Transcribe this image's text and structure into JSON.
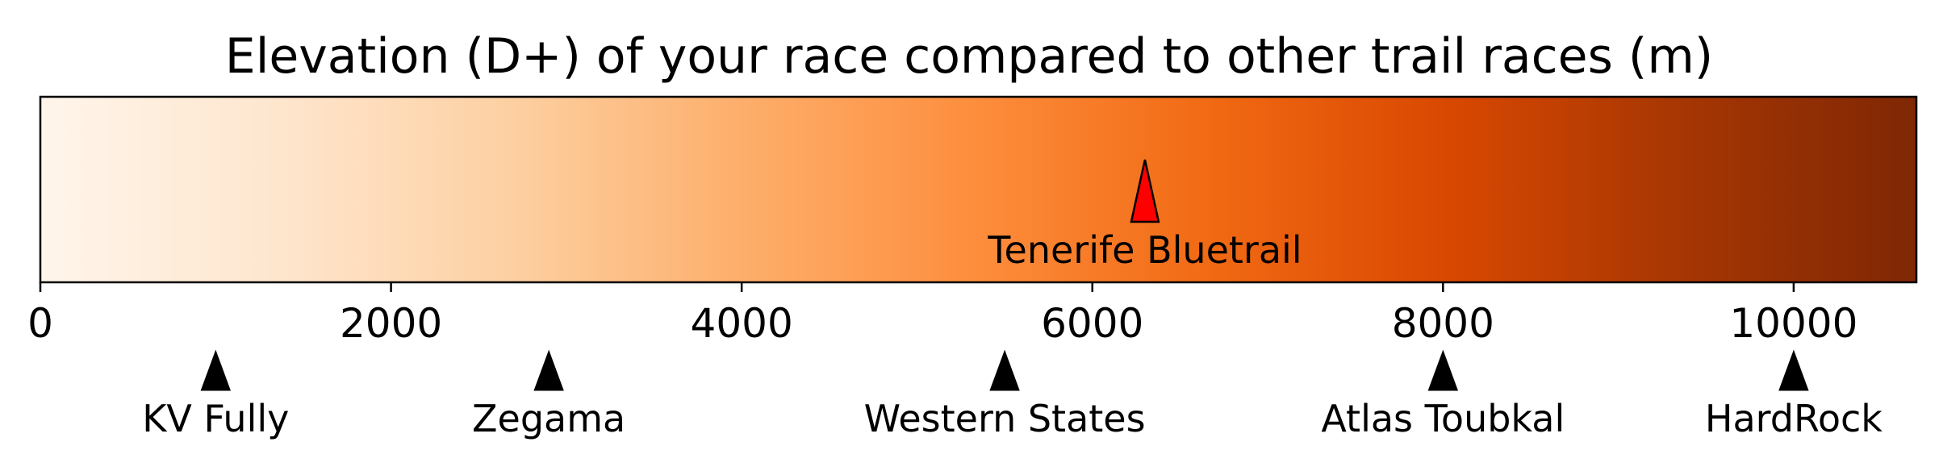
{
  "chart_data": {
    "type": "colorbar",
    "title": "Elevation (D+) of your race compared to other trail races (m)",
    "xlim": [
      0,
      10700
    ],
    "ticks": [
      0,
      2000,
      4000,
      6000,
      8000,
      10000
    ],
    "tick_labels": [
      "0",
      "2000",
      "4000",
      "6000",
      "8000",
      "10000"
    ],
    "colormap": [
      "#fff5eb",
      "#fee6ce",
      "#fdd0a2",
      "#fdae6b",
      "#fd8d3c",
      "#f16913",
      "#d94801",
      "#a63603",
      "#7f2704"
    ],
    "highlight": {
      "name": "Tenerife Bluetrail",
      "value": 6300,
      "color": "#ff0000"
    },
    "reference_races": [
      {
        "name": "KV Fully",
        "value": 1000
      },
      {
        "name": "Zegama",
        "value": 2900
      },
      {
        "name": "Western States",
        "value": 5500
      },
      {
        "name": "Atlas Toubkal",
        "value": 8000
      },
      {
        "name": "HardRock",
        "value": 10000
      }
    ]
  }
}
